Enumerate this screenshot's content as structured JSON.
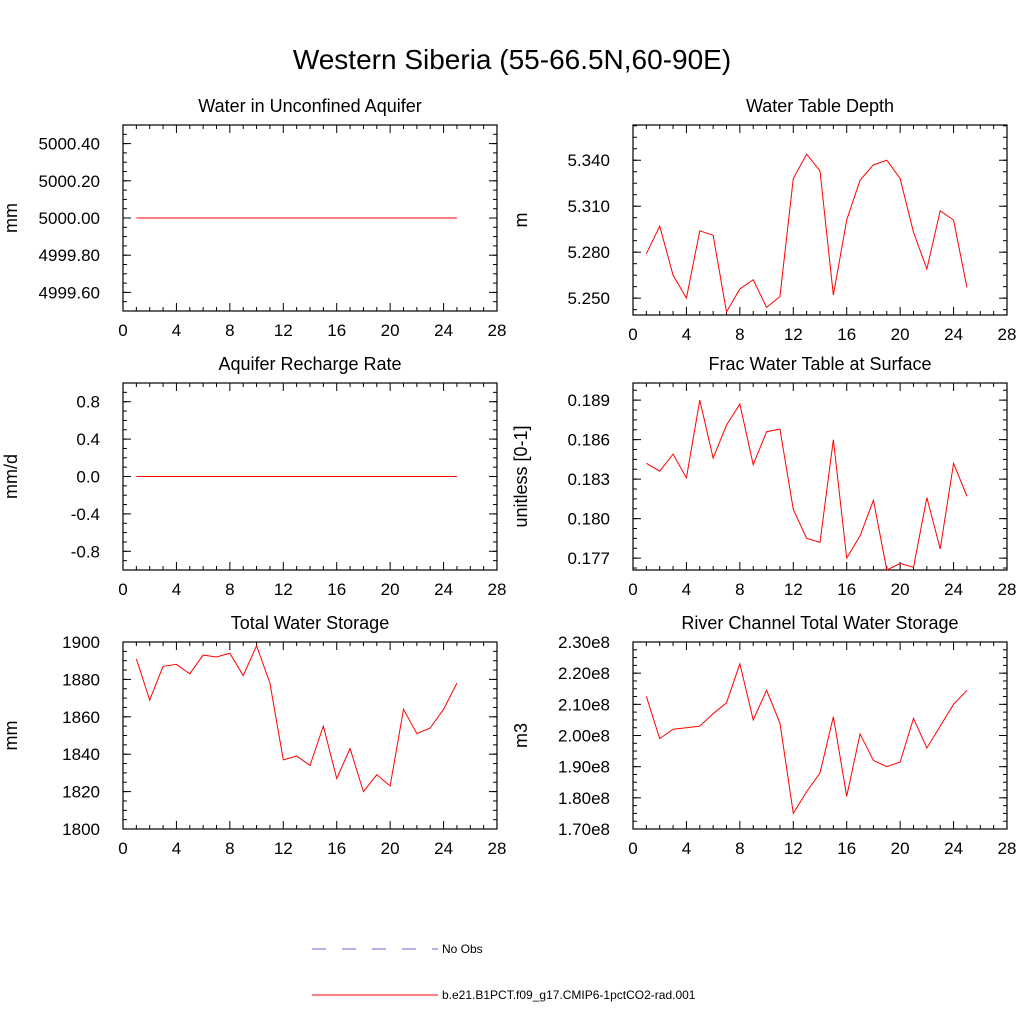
{
  "title": "Western Siberia (55-66.5N,60-90E)",
  "colors": {
    "series": "#ff0000",
    "obs": "#6666cc",
    "axis": "#000000"
  },
  "legend": {
    "obs_label": "No Obs",
    "model_label": "b.e21.B1PCT.f09_g17.CMIP6-1pctCO2-rad.001"
  },
  "chart_data": [
    {
      "type": "line",
      "title": "Water in Unconfined Aquifer",
      "xlabel": "",
      "ylabel": "mm",
      "xlim": [
        0,
        28
      ],
      "ylim": [
        4999.5,
        5000.5
      ],
      "xticks": [
        0,
        4,
        8,
        12,
        16,
        20,
        24,
        28
      ],
      "yticks": [
        4999.6,
        4999.8,
        5000.0,
        5000.2,
        5000.4
      ],
      "ytick_labels": [
        "4999.60",
        "4999.80",
        "5000.00",
        "5000.20",
        "5000.40"
      ],
      "x": [
        1,
        2,
        3,
        4,
        5,
        6,
        7,
        8,
        9,
        10,
        11,
        12,
        13,
        14,
        15,
        16,
        17,
        18,
        19,
        20,
        21,
        22,
        23,
        24,
        25
      ],
      "values": [
        5000,
        5000,
        5000,
        5000,
        5000,
        5000,
        5000,
        5000,
        5000,
        5000,
        5000,
        5000,
        5000,
        5000,
        5000,
        5000,
        5000,
        5000,
        5000,
        5000,
        5000,
        5000,
        5000,
        5000,
        5000
      ]
    },
    {
      "type": "line",
      "title": "Water Table Depth",
      "xlabel": "",
      "ylabel": "m",
      "xlim": [
        0,
        28
      ],
      "ylim": [
        5.239,
        5.363
      ],
      "xticks": [
        0,
        4,
        8,
        12,
        16,
        20,
        24,
        28
      ],
      "yticks": [
        5.25,
        5.28,
        5.31,
        5.34
      ],
      "ytick_labels": [
        "5.250",
        "5.280",
        "5.310",
        "5.340"
      ],
      "x": [
        1,
        2,
        3,
        4,
        5,
        6,
        7,
        8,
        9,
        10,
        11,
        12,
        13,
        14,
        15,
        16,
        17,
        18,
        19,
        20,
        21,
        22,
        23,
        24,
        25
      ],
      "values": [
        5.279,
        5.297,
        5.265,
        5.25,
        5.294,
        5.291,
        5.241,
        5.256,
        5.262,
        5.244,
        5.251,
        5.328,
        5.344,
        5.333,
        5.252,
        5.301,
        5.327,
        5.337,
        5.34,
        5.328,
        5.293,
        5.269,
        5.307,
        5.301,
        5.257
      ]
    },
    {
      "type": "line",
      "title": "Aquifer Recharge Rate",
      "xlabel": "",
      "ylabel": "mm/d",
      "xlim": [
        0,
        28
      ],
      "ylim": [
        -1.0,
        1.0
      ],
      "xticks": [
        0,
        4,
        8,
        12,
        16,
        20,
        24,
        28
      ],
      "yticks": [
        -0.8,
        -0.4,
        0.0,
        0.4,
        0.8
      ],
      "ytick_labels": [
        "-0.8",
        "-0.4",
        "0.0",
        "0.4",
        "0.8"
      ],
      "x": [
        1,
        2,
        3,
        4,
        5,
        6,
        7,
        8,
        9,
        10,
        11,
        12,
        13,
        14,
        15,
        16,
        17,
        18,
        19,
        20,
        21,
        22,
        23,
        24,
        25
      ],
      "values": [
        0,
        0,
        0,
        0,
        0,
        0,
        0,
        0,
        0,
        0,
        0,
        0,
        0,
        0,
        0,
        0,
        0,
        0,
        0,
        0,
        0,
        0,
        0,
        0,
        0
      ]
    },
    {
      "type": "line",
      "title": "Frac Water Table at Surface",
      "xlabel": "",
      "ylabel": "unitless [0-1]",
      "xlim": [
        0,
        28
      ],
      "ylim": [
        0.1761,
        0.1903
      ],
      "xticks": [
        0,
        4,
        8,
        12,
        16,
        20,
        24,
        28
      ],
      "yticks": [
        0.177,
        0.18,
        0.183,
        0.186,
        0.189
      ],
      "ytick_labels": [
        "0.177",
        "0.180",
        "0.183",
        "0.186",
        "0.189"
      ],
      "x": [
        1,
        2,
        3,
        4,
        5,
        6,
        7,
        8,
        9,
        10,
        11,
        12,
        13,
        14,
        15,
        16,
        17,
        18,
        19,
        20,
        21,
        22,
        23,
        24,
        25
      ],
      "values": [
        0.1842,
        0.1836,
        0.1849,
        0.1831,
        0.189,
        0.1846,
        0.1871,
        0.1887,
        0.1841,
        0.1866,
        0.1868,
        0.1807,
        0.1785,
        0.1782,
        0.186,
        0.177,
        0.1787,
        0.1814,
        0.1761,
        0.1766,
        0.1763,
        0.1816,
        0.1777,
        0.1842,
        0.1817
      ]
    },
    {
      "type": "line",
      "title": "Total Water Storage",
      "xlabel": "",
      "ylabel": "mm",
      "xlim": [
        0,
        28
      ],
      "ylim": [
        1800,
        1900
      ],
      "xticks": [
        0,
        4,
        8,
        12,
        16,
        20,
        24,
        28
      ],
      "yticks": [
        1800,
        1820,
        1840,
        1860,
        1880,
        1900
      ],
      "ytick_labels": [
        "1800",
        "1820",
        "1840",
        "1860",
        "1880",
        "1900"
      ],
      "x": [
        1,
        2,
        3,
        4,
        5,
        6,
        7,
        8,
        9,
        10,
        11,
        12,
        13,
        14,
        15,
        16,
        17,
        18,
        19,
        20,
        21,
        22,
        23,
        24,
        25
      ],
      "values": [
        1891,
        1869,
        1887,
        1888,
        1883,
        1893,
        1892,
        1894,
        1882,
        1898,
        1878,
        1837,
        1839,
        1834,
        1855,
        1827,
        1843,
        1820,
        1829,
        1823,
        1864,
        1851,
        1854,
        1864,
        1878
      ]
    },
    {
      "type": "line",
      "title": "River Channel Total Water Storage",
      "xlabel": "",
      "ylabel": "m3",
      "xlim": [
        0,
        28
      ],
      "ylim": [
        170000000.0,
        230000000.0
      ],
      "xticks": [
        0,
        4,
        8,
        12,
        16,
        20,
        24,
        28
      ],
      "yticks": [
        170000000.0,
        180000000.0,
        190000000.0,
        200000000.0,
        210000000.0,
        220000000.0,
        230000000.0
      ],
      "ytick_labels": [
        "1.70e8",
        "1.80e8",
        "1.90e8",
        "2.00e8",
        "2.10e8",
        "2.20e8",
        "2.30e8"
      ],
      "x": [
        1,
        2,
        3,
        4,
        5,
        6,
        7,
        8,
        9,
        10,
        11,
        12,
        13,
        14,
        15,
        16,
        17,
        18,
        19,
        20,
        21,
        22,
        23,
        24,
        25
      ],
      "values": [
        212500000.0,
        199000000.0,
        202000000.0,
        202500000.0,
        203000000.0,
        207000000.0,
        210500000.0,
        223000000.0,
        205000000.0,
        214500000.0,
        204000000.0,
        175000000.0,
        182000000.0,
        188000000.0,
        206000000.0,
        180500000.0,
        200500000.0,
        192000000.0,
        190000000.0,
        191500000.0,
        205500000.0,
        196000000.0,
        203000000.0,
        210000000.0,
        214500000.0
      ]
    }
  ]
}
